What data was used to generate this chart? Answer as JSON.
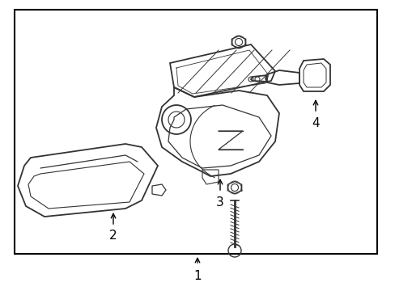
{
  "background_color": "#ffffff",
  "border_color": "#000000",
  "line_color": "#333333",
  "label_color": "#000000",
  "border_lw": 1.5,
  "fig_width": 4.89,
  "fig_height": 3.6,
  "dpi": 100
}
